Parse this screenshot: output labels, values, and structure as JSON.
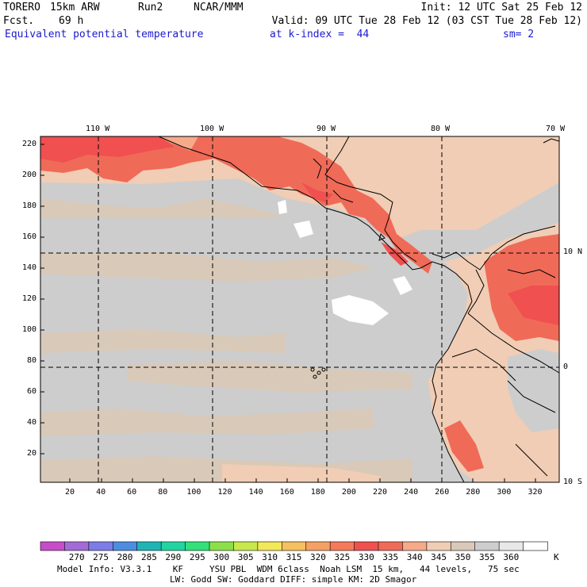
{
  "header": {
    "model": "TORERO",
    "resolution": "15km ARW",
    "run": "Run2",
    "org": "NCAR/MMM",
    "init": "Init: 12 UTC Sat 25 Feb 12",
    "fcst_label": "Fcst.",
    "fcst_hours": "69 h",
    "valid": "Valid: 09 UTC Tue 28 Feb 12 (03 CST Tue 28 Feb 12)",
    "field": "Equivalent potential temperature",
    "level": "at k-index =  44",
    "smoothing": "sm= 2"
  },
  "map": {
    "top_lon_labels": [
      "110 W",
      "100 W",
      "90 W",
      "80 W",
      "70 W"
    ],
    "right_lat_labels": [
      "10 N",
      "0",
      "10 S"
    ],
    "y_grid_labels": [
      "220",
      "200",
      "180",
      "160",
      "140",
      "120",
      "100",
      "80",
      "60",
      "40",
      "20"
    ],
    "x_grid_labels": [
      "20",
      "40",
      "60",
      "80",
      "100",
      "120",
      "140",
      "160",
      "180",
      "200",
      "220",
      "240",
      "260",
      "280",
      "300",
      "320"
    ]
  },
  "colorbar": {
    "values": [
      "270",
      "275",
      "280",
      "285",
      "290",
      "295",
      "300",
      "305",
      "310",
      "315",
      "320",
      "325",
      "330",
      "335",
      "340",
      "345",
      "350",
      "355",
      "360"
    ],
    "unit": "K",
    "colors": [
      "#c74dc7",
      "#a36bd6",
      "#7d7de8",
      "#4c8de0",
      "#1fb5b5",
      "#22d4a0",
      "#33e07a",
      "#8be04a",
      "#c8e84a",
      "#f2e85a",
      "#f5c060",
      "#f5a064",
      "#f57a5a",
      "#f05050",
      "#f06a58",
      "#f5aa8a",
      "#f0cdb4",
      "#d9c9b8",
      "#cdcdcd",
      "#e8e8e8",
      "#ffffff"
    ]
  },
  "footer": {
    "line1": "Model Info: V3.3.1    KF     YSU PBL  WDM 6class  Noah LSM  15 km,   44 levels,   75 sec",
    "line2": "LW: Godd SW: Goddard DIFF: simple KM: 2D Smagor"
  }
}
